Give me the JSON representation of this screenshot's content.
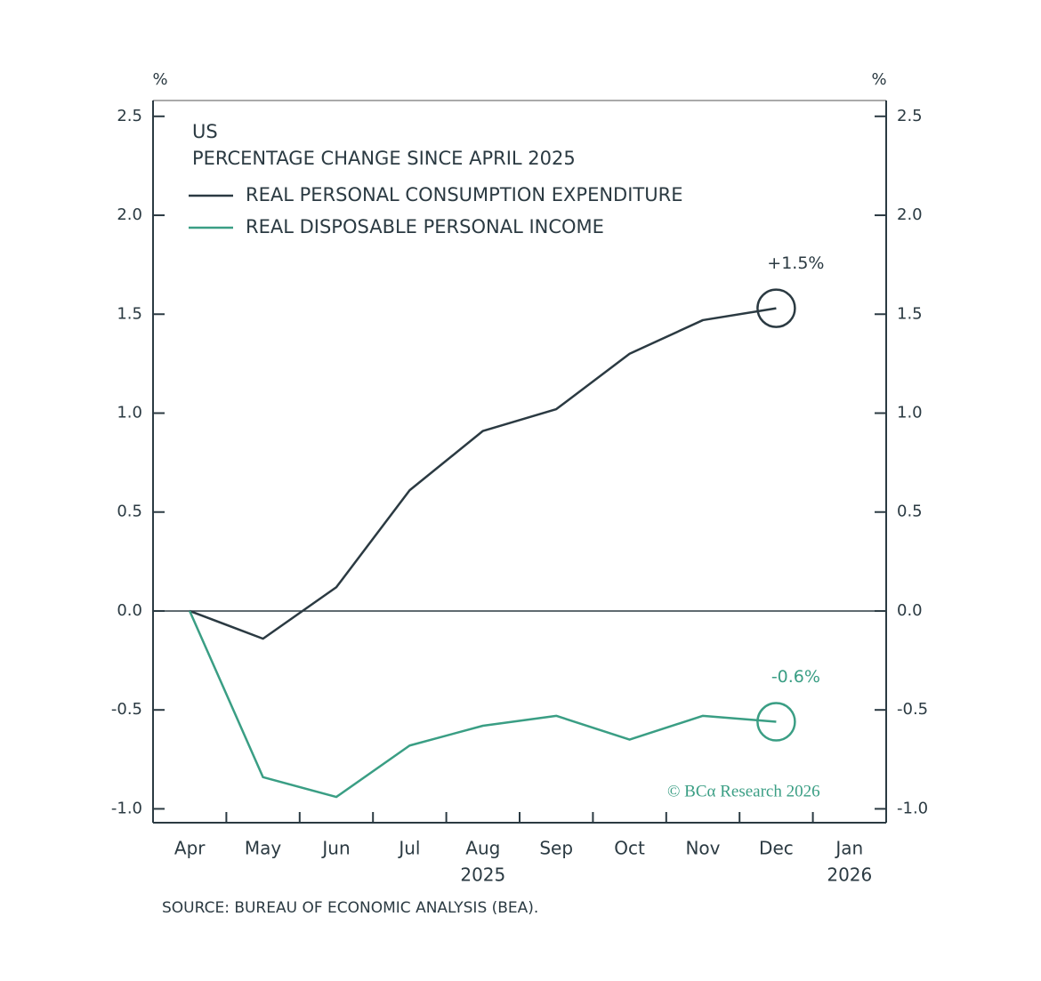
{
  "chart_data": {
    "type": "line",
    "title": "US",
    "subtitle": "PERCENTAGE CHANGE SINCE APRIL 2025",
    "y_unit": "%",
    "y2_unit": "%",
    "categories": [
      "Apr",
      "May",
      "Jun",
      "Jul",
      "Aug",
      "Sep",
      "Oct",
      "Nov",
      "Dec",
      "Jan"
    ],
    "year_labels": [
      null,
      null,
      null,
      null,
      "2025",
      null,
      null,
      null,
      null,
      "2026"
    ],
    "series": [
      {
        "name": "REAL PERSONAL CONSUMPTION EXPENDITURE",
        "color": "#2b3a42",
        "values": [
          0,
          -0.14,
          0.12,
          0.61,
          0.91,
          1.02,
          1.3,
          1.47,
          1.53,
          null
        ],
        "end_label": "+1.5%"
      },
      {
        "name": "REAL DISPOSABLE PERSONAL INCOME",
        "color": "#3a9e84",
        "values": [
          0,
          -0.84,
          -0.94,
          -0.68,
          -0.58,
          -0.53,
          -0.65,
          -0.53,
          -0.56,
          null
        ],
        "end_label": "-0.6%"
      }
    ],
    "ylim": [
      -1.07,
      2.58
    ],
    "yticks": [
      {
        "value": -1,
        "label": "-1.0"
      },
      -0.5,
      {
        "value": 0,
        "label": "0.0"
      },
      0.5,
      {
        "value": 1,
        "label": "1.0"
      },
      1.5,
      {
        "value": 2,
        "label": "2.0"
      },
      2.5
    ],
    "y2lim": [
      -1.07,
      2.58
    ],
    "y2ticks": [
      {
        "value": -1,
        "label": "-1.0"
      },
      -0.5,
      {
        "value": 0,
        "label": "0.0"
      },
      0.5,
      {
        "value": 1,
        "label": "1.0"
      },
      1.5,
      {
        "value": 2,
        "label": "2.0"
      },
      2.5
    ],
    "legend": "upper left",
    "watermark": "© BCα Research 2026",
    "source": "SOURCE: BUREAU OF ECONOMIC ANALYSIS (BEA)."
  }
}
